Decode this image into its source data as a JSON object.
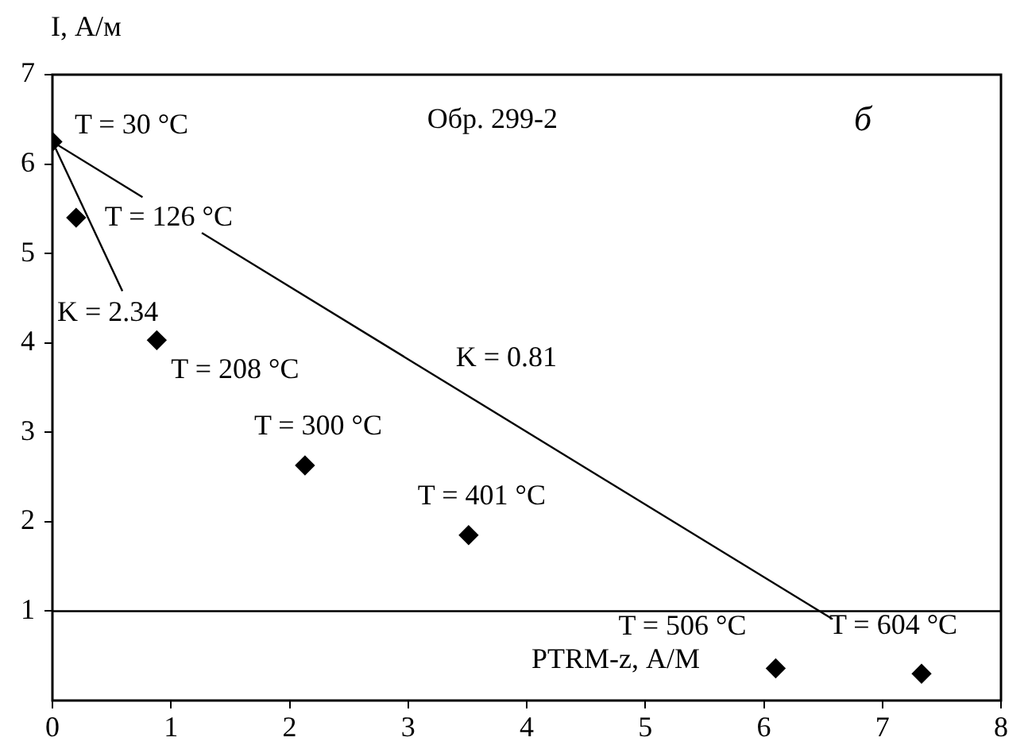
{
  "chart_data": {
    "type": "scatter",
    "xlabel": "PTRM-z, А/М",
    "ylabel": "I, А/м",
    "xlim": [
      0,
      8
    ],
    "xticks": [
      0,
      1,
      2,
      3,
      4,
      5,
      6,
      7,
      8
    ],
    "ylim": [
      0,
      7
    ],
    "yticks": [
      1,
      2,
      3,
      4,
      5,
      6,
      7
    ],
    "grid": false,
    "legend": false,
    "marker": "diamond",
    "line_style": "solid",
    "series": [
      {
        "color": "#000000",
        "x": [
          0,
          0.2,
          0.88,
          2.13,
          3.51,
          6.1,
          7.33
        ],
        "values": [
          6.25,
          5.4,
          4.03,
          2.63,
          1.85,
          0.36,
          0.3
        ]
      },
      {
        "type": "line",
        "marker": "none",
        "color": "#000000",
        "x": [
          0,
          0.59
        ],
        "values": [
          6.25,
          4.58
        ]
      },
      {
        "type": "line",
        "marker": "none",
        "color": "#000000",
        "x": [
          0,
          0.76,
          1.0,
          1.26,
          6.58
        ],
        "values": [
          6.25,
          5.63,
          null,
          5.23,
          0.91
        ]
      }
    ],
    "ref_lines": [
      {
        "axis": "y",
        "value": 1,
        "color": "#000000"
      }
    ],
    "annotations": [
      {
        "text": "T = 30 °C",
        "x": 0,
        "y": 6.25
      },
      {
        "text": "T = 126 °C",
        "x": 0.2,
        "y": 5.4
      },
      {
        "text": "T = 208 °C",
        "x": 0.88,
        "y": 4.03
      },
      {
        "text": "T = 300 °C",
        "x": 2.13,
        "y": 2.63
      },
      {
        "text": "T = 401 °C",
        "x": 3.51,
        "y": 1.85
      },
      {
        "text": "T = 506 °C",
        "x": 6.1,
        "y": 0.36
      },
      {
        "text": "T = 604 °C",
        "x": 7.33,
        "y": 0.3
      },
      {
        "text": "K = 2.34",
        "x": 0.59,
        "y": 4.58
      },
      {
        "text": "K = 0.81",
        "x": 3,
        "y": 3.82
      },
      "Обр. 299-2",
      "б"
    ]
  }
}
